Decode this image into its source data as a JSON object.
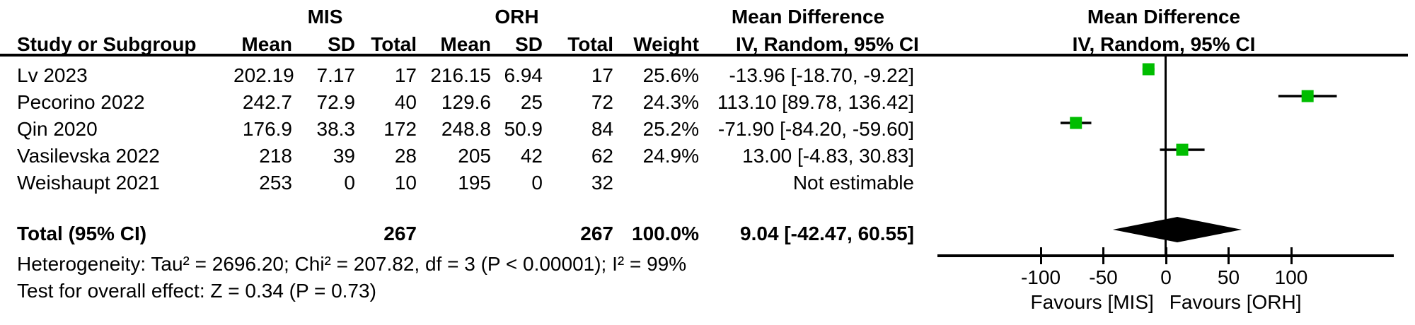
{
  "groups": {
    "group1": "MIS",
    "group2": "ORH",
    "effect_title": "Mean Difference",
    "effect_method": "IV, Random, 95% CI",
    "plot_title": "Mean Difference",
    "plot_method": "IV, Random, 95% CI"
  },
  "table": {
    "headers": {
      "study": "Study or Subgroup",
      "mean1": "Mean",
      "sd1": "SD",
      "total1": "Total",
      "mean2": "Mean",
      "sd2": "SD",
      "total2": "Total",
      "weight": "Weight",
      "ci": "IV, Random, 95% CI"
    },
    "rows": [
      {
        "study": "Lv 2023",
        "mis_mean": "202.19",
        "mis_sd": "7.17",
        "mis_total": "17",
        "orh_mean": "216.15",
        "orh_sd": "6.94",
        "orh_total": "17",
        "weight": "25.6%",
        "ci": "-13.96 [-18.70, -9.22]"
      },
      {
        "study": "Pecorino 2022",
        "mis_mean": "242.7",
        "mis_sd": "72.9",
        "mis_total": "40",
        "orh_mean": "129.6",
        "orh_sd": "25",
        "orh_total": "72",
        "weight": "24.3%",
        "ci": "113.10 [89.78, 136.42]"
      },
      {
        "study": "Qin 2020",
        "mis_mean": "176.9",
        "mis_sd": "38.3",
        "mis_total": "172",
        "orh_mean": "248.8",
        "orh_sd": "50.9",
        "orh_total": "84",
        "weight": "25.2%",
        "ci": "-71.90 [-84.20, -59.60]"
      },
      {
        "study": "Vasilevska 2022",
        "mis_mean": "218",
        "mis_sd": "39",
        "mis_total": "28",
        "orh_mean": "205",
        "orh_sd": "42",
        "orh_total": "62",
        "weight": "24.9%",
        "ci": "13.00 [-4.83, 30.83]"
      },
      {
        "study": "Weishaupt 2021",
        "mis_mean": "253",
        "mis_sd": "0",
        "mis_total": "10",
        "orh_mean": "195",
        "orh_sd": "0",
        "orh_total": "32",
        "weight": "",
        "ci": "Not estimable"
      }
    ],
    "total": {
      "label": "Total (95% CI)",
      "mis_total": "267",
      "orh_total": "267",
      "weight": "100.0%",
      "ci": "9.04 [-42.47, 60.55]"
    }
  },
  "footnotes": {
    "heterogeneity": "Heterogeneity: Tau² = 2696.20; Chi² = 207.82, df = 3 (P < 0.00001); I² = 99%",
    "overall_effect": "Test for overall effect: Z = 0.34 (P = 0.73)"
  },
  "chart_data": {
    "type": "scatter",
    "subtype": "forest-plot",
    "title": "Mean Difference",
    "subtitle": "IV, Random, 95% CI",
    "x_ticks": [
      -100,
      -50,
      0,
      50,
      100
    ],
    "xlim": [
      -182,
      182
    ],
    "zero_line": 0,
    "x_axis_label_left": "Favours [MIS]",
    "x_axis_label_right": "Favours [ORH]",
    "marker_color": "#00bd00",
    "diamond_color": "#000000",
    "studies": [
      {
        "name": "Lv 2023",
        "md": -13.96,
        "ci_low": -18.7,
        "ci_high": -9.22,
        "weight_pct": 25.6
      },
      {
        "name": "Pecorino 2022",
        "md": 113.1,
        "ci_low": 89.78,
        "ci_high": 136.42,
        "weight_pct": 24.3
      },
      {
        "name": "Qin 2020",
        "md": -71.9,
        "ci_low": -84.2,
        "ci_high": -59.6,
        "weight_pct": 25.2
      },
      {
        "name": "Vasilevska 2022",
        "md": 13.0,
        "ci_low": -4.83,
        "ci_high": 30.83,
        "weight_pct": 24.9
      },
      {
        "name": "Weishaupt 2021",
        "md": null,
        "ci_low": null,
        "ci_high": null,
        "weight_pct": null,
        "note": "Not estimable"
      }
    ],
    "total": {
      "label": "Total (95% CI)",
      "md": 9.04,
      "ci_low": -42.47,
      "ci_high": 60.55,
      "weight_pct": 100.0
    }
  }
}
